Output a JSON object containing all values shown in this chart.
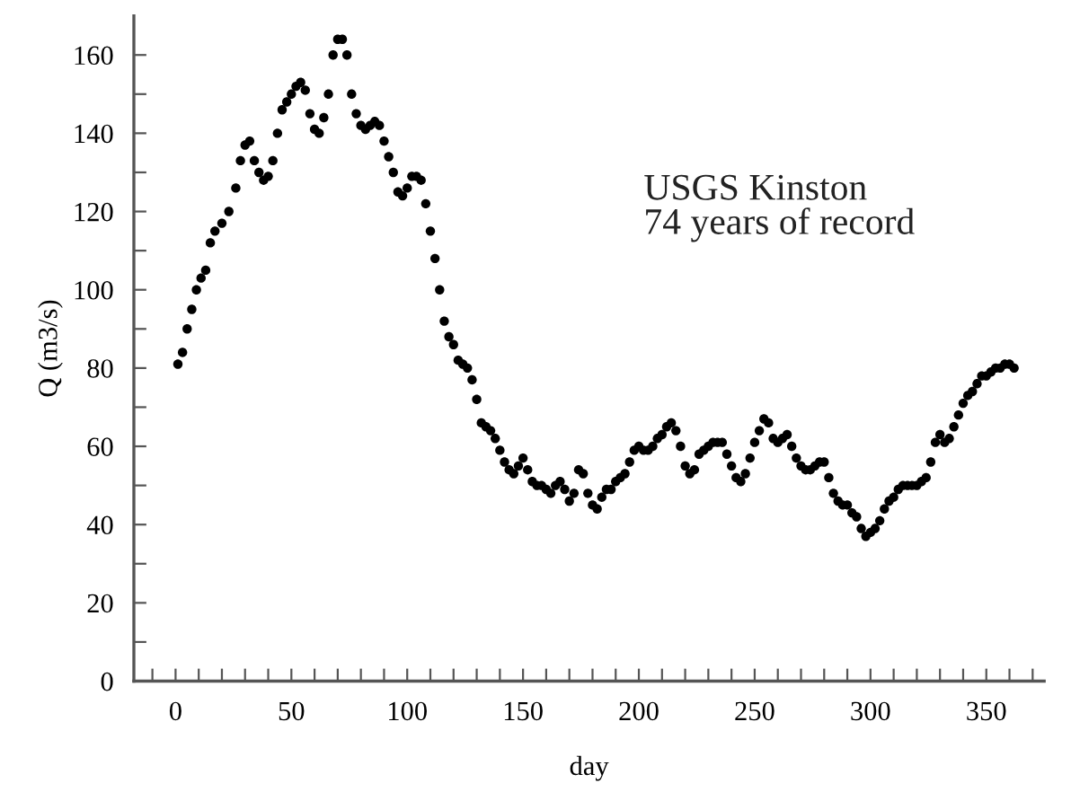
{
  "chart_data": {
    "type": "scatter",
    "xlabel": "day",
    "ylabel": "Q (m3/s)",
    "annotations": [
      "USGS Kinston\n74 years of record"
    ],
    "marker": "circle",
    "grid": false,
    "xlim": [
      -18,
      375
    ],
    "ylim": [
      0,
      170
    ],
    "xticks": [
      {
        "value": -10,
        "label": null
      },
      0,
      {
        "value": 10,
        "label": null
      },
      {
        "value": 20,
        "label": null
      },
      {
        "value": 30,
        "label": null
      },
      {
        "value": 40,
        "label": null
      },
      50,
      {
        "value": 60,
        "label": null
      },
      {
        "value": 70,
        "label": null
      },
      {
        "value": 80,
        "label": null
      },
      {
        "value": 90,
        "label": null
      },
      100,
      {
        "value": 110,
        "label": null
      },
      {
        "value": 120,
        "label": null
      },
      {
        "value": 130,
        "label": null
      },
      {
        "value": 140,
        "label": null
      },
      150,
      {
        "value": 160,
        "label": null
      },
      {
        "value": 170,
        "label": null
      },
      {
        "value": 180,
        "label": null
      },
      {
        "value": 190,
        "label": null
      },
      200,
      {
        "value": 210,
        "label": null
      },
      {
        "value": 220,
        "label": null
      },
      {
        "value": 230,
        "label": null
      },
      {
        "value": 240,
        "label": null
      },
      250,
      {
        "value": 260,
        "label": null
      },
      {
        "value": 270,
        "label": null
      },
      {
        "value": 280,
        "label": null
      },
      {
        "value": 290,
        "label": null
      },
      300,
      {
        "value": 310,
        "label": null
      },
      {
        "value": 320,
        "label": null
      },
      {
        "value": 330,
        "label": null
      },
      {
        "value": 340,
        "label": null
      },
      350,
      {
        "value": 360,
        "label": null
      },
      {
        "value": 370,
        "label": null
      }
    ],
    "yticks": [
      0,
      {
        "value": 10,
        "label": null
      },
      20,
      {
        "value": 30,
        "label": null
      },
      40,
      {
        "value": 50,
        "label": null
      },
      60,
      {
        "value": 70,
        "label": null
      },
      80,
      {
        "value": 90,
        "label": null
      },
      100,
      {
        "value": 110,
        "label": null
      },
      120,
      {
        "value": 130,
        "label": null
      },
      140,
      {
        "value": 150,
        "label": null
      },
      160
    ],
    "series": [
      {
        "color": "#000000",
        "x": [
          1,
          3,
          5,
          7,
          9,
          11,
          13,
          15,
          17,
          20,
          23,
          26,
          28,
          30,
          32,
          34,
          36,
          38,
          40,
          42,
          44,
          46,
          48,
          50,
          52,
          54,
          56,
          58,
          60,
          62,
          64,
          66,
          68,
          70,
          72,
          74,
          76,
          78,
          80,
          82,
          84,
          86,
          88,
          90,
          92,
          94,
          96,
          98,
          100,
          102,
          104,
          106,
          108,
          110,
          112,
          114,
          116,
          118,
          120,
          122,
          124,
          126,
          128,
          130,
          132,
          134,
          136,
          138,
          140,
          142,
          144,
          146,
          148,
          150,
          152,
          154,
          156,
          158,
          160,
          162,
          164,
          166,
          168,
          170,
          172,
          174,
          176,
          178,
          180,
          182,
          184,
          186,
          188,
          190,
          192,
          194,
          196,
          198,
          200,
          202,
          204,
          206,
          208,
          210,
          212,
          214,
          216,
          218,
          220,
          222,
          224,
          226,
          228,
          230,
          232,
          234,
          236,
          238,
          240,
          242,
          244,
          246,
          248,
          250,
          252,
          254,
          256,
          258,
          260,
          262,
          264,
          266,
          268,
          270,
          272,
          274,
          276,
          278,
          280,
          282,
          284,
          286,
          288,
          290,
          292,
          294,
          296,
          298,
          300,
          302,
          304,
          306,
          308,
          310,
          312,
          314,
          316,
          318,
          320,
          322,
          324,
          326,
          328,
          330,
          332,
          334,
          336,
          338,
          340,
          342,
          344,
          346,
          348,
          350,
          352,
          354,
          356,
          358,
          360,
          362
        ],
        "values": [
          81,
          84,
          90,
          95,
          100,
          103,
          105,
          112,
          115,
          117,
          120,
          126,
          133,
          137,
          138,
          133,
          130,
          128,
          129,
          133,
          140,
          146,
          148,
          150,
          152,
          153,
          151,
          145,
          141,
          140,
          144,
          150,
          160,
          164,
          164,
          160,
          150,
          145,
          142,
          141,
          142,
          143,
          142,
          138,
          134,
          130,
          125,
          124,
          126,
          129,
          129,
          128,
          122,
          115,
          108,
          100,
          92,
          88,
          86,
          82,
          81,
          80,
          77,
          72,
          66,
          65,
          64,
          62,
          59,
          56,
          54,
          53,
          55,
          57,
          54,
          51,
          50,
          50,
          49,
          48,
          50,
          51,
          49,
          46,
          48,
          54,
          53,
          48,
          45,
          44,
          47,
          49,
          49,
          51,
          52,
          53,
          56,
          59,
          60,
          59,
          59,
          60,
          62,
          63,
          65,
          66,
          64,
          60,
          55,
          53,
          54,
          58,
          59,
          60,
          61,
          61,
          61,
          58,
          55,
          52,
          51,
          53,
          57,
          61,
          64,
          67,
          66,
          62,
          61,
          62,
          63,
          60,
          57,
          55,
          54,
          54,
          55,
          56,
          56,
          52,
          48,
          46,
          45,
          45,
          43,
          42,
          39,
          37,
          38,
          39,
          41,
          44,
          46,
          47,
          49,
          50,
          50,
          50,
          50,
          51,
          52,
          56,
          61,
          63,
          61,
          62,
          65,
          68,
          71,
          73,
          74,
          76,
          78,
          78,
          79,
          80,
          80,
          81,
          81,
          80
        ]
      }
    ]
  }
}
